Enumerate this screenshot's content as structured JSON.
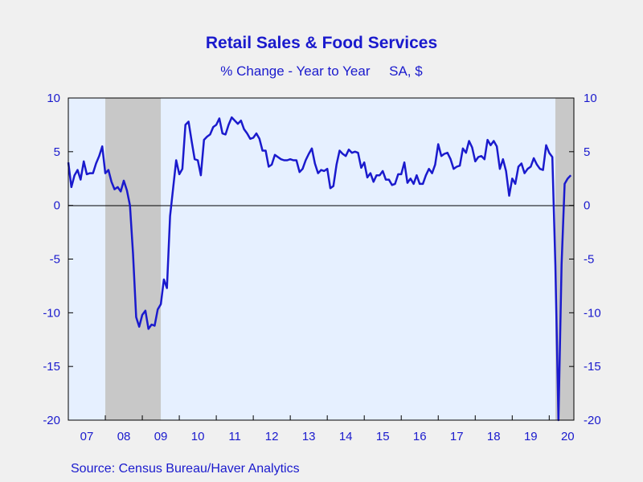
{
  "chart_data": {
    "type": "line",
    "title": "Retail Sales & Food Services",
    "subtitle": "% Change - Year to Year     SA, $",
    "source": "Source:  Census Bureau/Haver Analytics",
    "ylim": [
      -20,
      10
    ],
    "yticks": [
      10,
      5,
      0,
      -5,
      -10,
      -15,
      -20
    ],
    "ytick_labels": [
      "10",
      "5",
      "0",
      "-5",
      "-10",
      "-15",
      "-20"
    ],
    "xlim": [
      2007.0,
      2020.6667
    ],
    "xticks": [
      2007.5,
      2008.5,
      2009.5,
      2010.5,
      2011.5,
      2012.5,
      2013.5,
      2014.5,
      2015.5,
      2016.5,
      2017.5,
      2018.5,
      2019.5,
      2020.5
    ],
    "xtick_labels": [
      "07",
      "08",
      "09",
      "10",
      "11",
      "12",
      "13",
      "14",
      "15",
      "16",
      "17",
      "18",
      "19",
      "20"
    ],
    "grid": false,
    "zero_line": true,
    "recessions": [
      [
        2008.0,
        2009.5
      ],
      [
        2020.1667,
        2020.6667
      ]
    ],
    "colors": {
      "line": "#1a1acd",
      "recession": "#c8c8c8",
      "plot_bg": "#e6f0ff",
      "text": "#1a1acd"
    },
    "series": [
      {
        "name": "",
        "x_start": 2007.0,
        "x_step_months": 1,
        "values": [
          4.0,
          1.7,
          2.8,
          3.3,
          2.4,
          4.1,
          2.9,
          3.0,
          3.0,
          3.9,
          4.6,
          5.5,
          3.0,
          3.3,
          2.2,
          1.5,
          1.7,
          1.3,
          2.3,
          1.4,
          0.0,
          -4.5,
          -10.4,
          -11.3,
          -10.2,
          -9.8,
          -11.5,
          -11.1,
          -11.2,
          -9.7,
          -9.2,
          -6.9,
          -7.7,
          -1.0,
          1.6,
          4.2,
          2.9,
          3.4,
          7.5,
          7.8,
          6.0,
          4.3,
          4.2,
          2.8,
          6.1,
          6.4,
          6.6,
          7.3,
          7.5,
          8.1,
          6.7,
          6.6,
          7.5,
          8.2,
          7.9,
          7.6,
          7.9,
          7.1,
          6.7,
          6.2,
          6.3,
          6.7,
          6.2,
          5.1,
          5.1,
          3.6,
          3.8,
          4.7,
          4.5,
          4.3,
          4.2,
          4.2,
          4.3,
          4.2,
          4.2,
          3.1,
          3.4,
          4.2,
          4.8,
          5.3,
          3.9,
          3.0,
          3.3,
          3.2,
          3.4,
          1.6,
          1.8,
          3.8,
          5.1,
          4.8,
          4.6,
          5.2,
          4.9,
          5.0,
          4.9,
          3.5,
          4.0,
          2.6,
          3.0,
          2.2,
          2.8,
          2.8,
          3.2,
          2.4,
          2.4,
          1.9,
          2.0,
          2.9,
          2.9,
          4.0,
          2.1,
          2.5,
          2.0,
          2.8,
          2.0,
          2.0,
          2.8,
          3.4,
          3.0,
          3.8,
          5.7,
          4.6,
          4.8,
          4.9,
          4.3,
          3.4,
          3.6,
          3.7,
          5.3,
          4.9,
          6.0,
          5.4,
          4.1,
          4.5,
          4.6,
          4.3,
          6.1,
          5.6,
          6.0,
          5.5,
          3.4,
          4.3,
          3.2,
          0.9,
          2.5,
          2.0,
          3.6,
          3.9,
          3.0,
          3.4,
          3.6,
          4.4,
          3.8,
          3.4,
          3.3,
          5.6,
          4.9,
          4.5,
          -5.6,
          -20.0,
          -5.5,
          2.0,
          2.5,
          2.8
        ]
      }
    ]
  }
}
